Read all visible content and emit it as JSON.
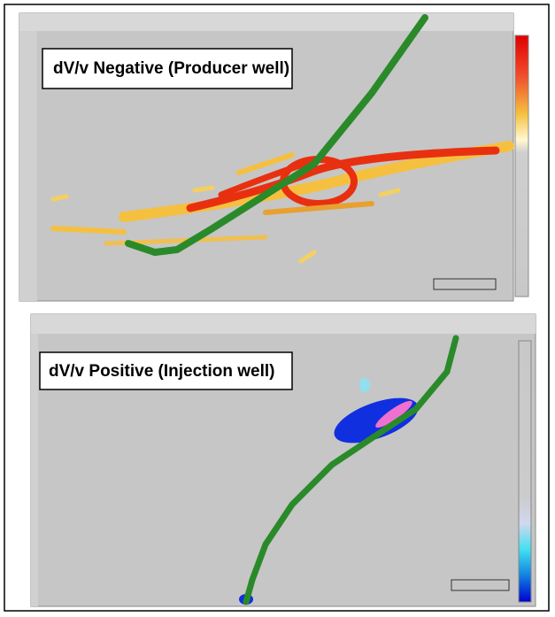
{
  "panels": [
    {
      "label": "dV/v Negative (Producer well)"
    },
    {
      "label": "dV/v Positive (Injection well)"
    }
  ]
}
